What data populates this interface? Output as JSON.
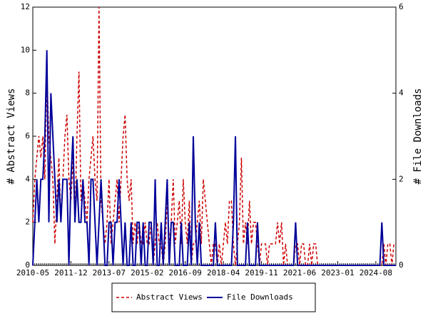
{
  "chart_data": {
    "type": "line",
    "ylabel": "# Abstract Views",
    "y2label": "# File Downloads",
    "ylim": [
      0,
      12
    ],
    "yticks": [
      0,
      2,
      4,
      6,
      8,
      10,
      12
    ],
    "y2lim": [
      0,
      6
    ],
    "y2ticks": [
      0,
      2,
      4,
      6
    ],
    "legend": "bottom",
    "categories": [
      "2010-05",
      null,
      null,
      null,
      null,
      null,
      null,
      null,
      null,
      null,
      null,
      null,
      null,
      null,
      null,
      null,
      null,
      null,
      null,
      "2011-12",
      null,
      null,
      null,
      null,
      null,
      null,
      null,
      null,
      null,
      null,
      null,
      null,
      null,
      null,
      null,
      null,
      null,
      null,
      "2013-07",
      null,
      null,
      null,
      null,
      null,
      null,
      null,
      null,
      null,
      null,
      null,
      null,
      null,
      null,
      null,
      null,
      null,
      null,
      "2015-02",
      null,
      null,
      null,
      null,
      null,
      null,
      null,
      null,
      null,
      null,
      null,
      null,
      null,
      null,
      null,
      null,
      null,
      null,
      "2016-09",
      null,
      null,
      null,
      null,
      null,
      null,
      null,
      null,
      null,
      null,
      null,
      null,
      null,
      null,
      null,
      null,
      null,
      null,
      "2018-04",
      null,
      null,
      null,
      null,
      null,
      null,
      null,
      null,
      null,
      null,
      null,
      null,
      null,
      null,
      null,
      null,
      null,
      null,
      "2019-11",
      null,
      null,
      null,
      null,
      null,
      null,
      null,
      null,
      null,
      null,
      null,
      null,
      null,
      null,
      null,
      null,
      null,
      null,
      "2021-06",
      null,
      null,
      null,
      null,
      null,
      null,
      null,
      null,
      null,
      null,
      null,
      null,
      null,
      null,
      null,
      null,
      null,
      null,
      "2023-01",
      null,
      null,
      null,
      null,
      null,
      null,
      null,
      null,
      null,
      null,
      null,
      null,
      null,
      null,
      null,
      null,
      null,
      null,
      "2024-08",
      null,
      null,
      null,
      null,
      null,
      null,
      null,
      null,
      null,
      null
    ],
    "series": [
      {
        "name": "Abstract Views",
        "color": "#cc0000",
        "dash": true,
        "values": [
          2,
          4,
          5,
          6,
          5,
          6,
          4,
          9,
          6,
          5,
          4,
          1,
          3,
          5,
          2,
          4,
          6,
          7,
          4,
          3,
          5,
          2,
          6,
          9,
          3,
          4,
          3,
          2,
          4,
          5,
          6,
          4,
          3,
          12,
          3,
          2,
          1,
          2,
          4,
          1,
          2,
          3,
          4,
          2,
          4,
          6,
          7,
          4,
          3,
          4,
          1,
          2,
          1,
          2,
          1,
          1,
          2,
          1,
          1,
          2,
          0,
          1,
          2,
          1,
          1,
          0,
          1,
          3,
          1,
          2,
          4,
          1,
          2,
          3,
          1,
          4,
          2,
          1,
          3,
          0,
          1,
          1,
          2,
          3,
          1,
          4,
          3,
          2,
          1,
          0,
          1,
          1,
          0,
          1,
          0,
          1,
          2,
          1,
          3,
          3,
          1,
          0,
          1,
          2,
          5,
          1,
          2,
          1,
          3,
          1,
          2,
          2,
          1,
          0,
          1,
          1,
          1,
          0,
          1,
          1,
          1,
          1,
          2,
          1,
          2,
          0,
          1,
          0,
          0,
          0,
          0,
          1,
          1,
          0,
          1,
          1,
          0,
          0,
          1,
          0,
          1,
          1,
          0,
          0,
          0,
          0,
          0,
          0,
          0,
          0,
          0,
          0,
          0,
          0,
          0,
          0,
          0,
          0,
          0,
          0,
          0,
          0,
          0,
          0,
          0,
          0,
          0,
          0,
          0,
          0,
          0,
          0,
          0,
          0,
          0,
          1,
          0,
          1,
          1,
          0,
          1,
          1
        ]
      },
      {
        "name": "File Downloads",
        "color": "#000099",
        "axis": "y2",
        "values": [
          0,
          1,
          2,
          1,
          2,
          2,
          3,
          5,
          1,
          4,
          3,
          2,
          1,
          2,
          1,
          2,
          2,
          2,
          0,
          2,
          3,
          1,
          2,
          1,
          1,
          2,
          1,
          1,
          0,
          2,
          2,
          1,
          0,
          1,
          2,
          1,
          0,
          0,
          1,
          1,
          0,
          1,
          1,
          2,
          1,
          0,
          1,
          0,
          0,
          1,
          0,
          0,
          1,
          1,
          0,
          1,
          0,
          0,
          1,
          1,
          0,
          2,
          0,
          0,
          1,
          0,
          1,
          2,
          0,
          1,
          1,
          0,
          0,
          0,
          1,
          0,
          0,
          0,
          1,
          0,
          3,
          1,
          0,
          1,
          0,
          0,
          0,
          0,
          0,
          0,
          0,
          1,
          0,
          0,
          0,
          0,
          0,
          0,
          0,
          0,
          1,
          3,
          0,
          0,
          0,
          0,
          0,
          1,
          0,
          0,
          0,
          0,
          1,
          0,
          0,
          0,
          0,
          0,
          0,
          0,
          0,
          0,
          0,
          0,
          0,
          0,
          0,
          0,
          0,
          0,
          0,
          1,
          0,
          0,
          0,
          0,
          0,
          0,
          0,
          0,
          0,
          0,
          0,
          0,
          0,
          0,
          0,
          0,
          0,
          0,
          0,
          0,
          0,
          0,
          0,
          0,
          0,
          0,
          0,
          0,
          0,
          0,
          0,
          0,
          0,
          0,
          0,
          0,
          0,
          0,
          0,
          0,
          0,
          0,
          1,
          0,
          0,
          0,
          0,
          0,
          0,
          0
        ]
      }
    ]
  }
}
